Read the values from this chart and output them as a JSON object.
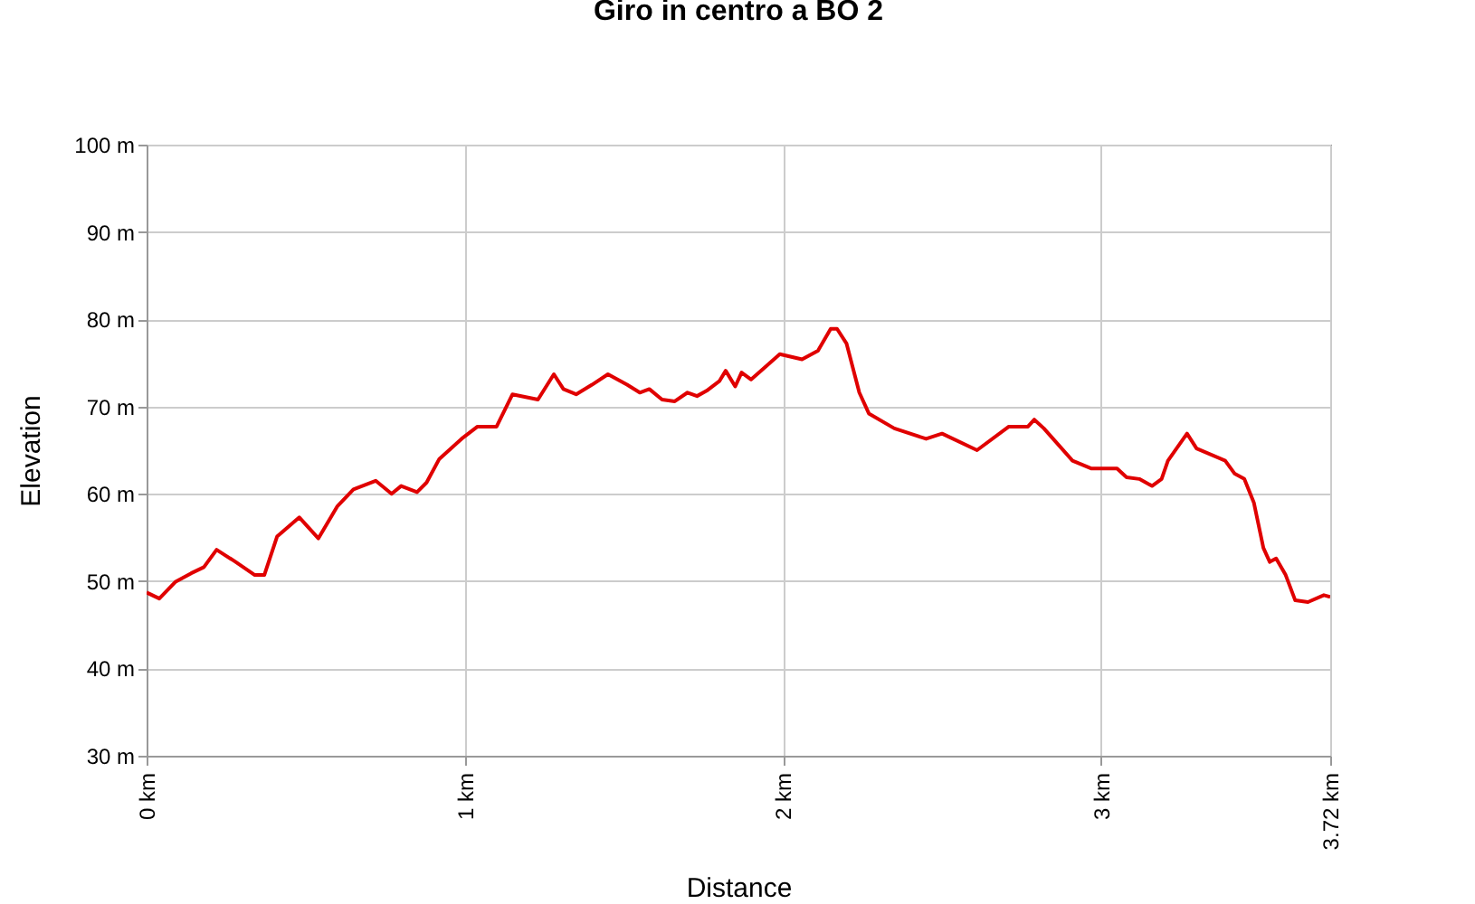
{
  "chart_data": {
    "type": "line",
    "title": "Giro in centro a BO 2",
    "xlabel": "Distance",
    "ylabel": "Elevation",
    "x": [
      0,
      0.04,
      0.09,
      0.14,
      0.18,
      0.22,
      0.28,
      0.34,
      0.37,
      0.41,
      0.48,
      0.54,
      0.6,
      0.65,
      0.72,
      0.77,
      0.8,
      0.85,
      0.88,
      0.92,
      0.99,
      1.04,
      1.1,
      1.15,
      1.23,
      1.28,
      1.31,
      1.35,
      1.4,
      1.45,
      1.51,
      1.55,
      1.58,
      1.62,
      1.66,
      1.7,
      1.73,
      1.76,
      1.8,
      1.82,
      1.85,
      1.87,
      1.9,
      1.95,
      1.99,
      2.06,
      2.11,
      2.15,
      2.17,
      2.2,
      2.24,
      2.27,
      2.35,
      2.45,
      2.5,
      2.61,
      2.71,
      2.77,
      2.79,
      2.82,
      2.91,
      2.97,
      3.05,
      3.08,
      3.12,
      3.16,
      3.19,
      3.21,
      3.27,
      3.3,
      3.39,
      3.42,
      3.45,
      3.48,
      3.51,
      3.53,
      3.55,
      3.58,
      3.61,
      3.65,
      3.7,
      3.72
    ],
    "series": [
      {
        "color": "#e00000",
        "values": [
          48.7,
          48,
          49.9,
          50.9,
          51.6,
          53.6,
          52.2,
          50.7,
          50.7,
          55.1,
          57.3,
          54.9,
          58.6,
          60.5,
          61.5,
          60,
          60.9,
          60.2,
          61.3,
          64,
          66.3,
          67.7,
          67.7,
          71.4,
          70.8,
          73.7,
          72,
          71.4,
          72.5,
          73.7,
          72.5,
          71.6,
          72,
          70.8,
          70.6,
          71.6,
          71.2,
          71.8,
          72.9,
          74.1,
          72.3,
          73.9,
          73.1,
          74.7,
          76,
          75.4,
          76.4,
          78.9,
          78.9,
          77.2,
          71.6,
          69.2,
          67.5,
          66.3,
          66.9,
          65,
          67.7,
          67.7,
          68.5,
          67.5,
          63.8,
          62.9,
          62.9,
          61.9,
          61.7,
          60.9,
          61.7,
          63.8,
          66.9,
          65.2,
          63.8,
          62.3,
          61.7,
          59,
          53.8,
          52.2,
          52.6,
          50.7,
          47.8,
          47.6,
          48.4,
          48.2
        ]
      }
    ],
    "xlim": [
      0,
      3.72
    ],
    "xticks": [
      {
        "value": 0,
        "label": "0 km"
      },
      {
        "value": 1,
        "label": "1 km"
      },
      {
        "value": 2,
        "label": "2 km"
      },
      {
        "value": 3,
        "label": "3 km"
      },
      {
        "value": 3.72,
        "label": "3.72 km"
      }
    ],
    "ylim": [
      30,
      100
    ],
    "yticks": [
      {
        "value": 30,
        "label": "30 m"
      },
      {
        "value": 40,
        "label": "40 m"
      },
      {
        "value": 50,
        "label": "50 m"
      },
      {
        "value": 60,
        "label": "60 m"
      },
      {
        "value": 70,
        "label": "70 m"
      },
      {
        "value": 80,
        "label": "80 m"
      },
      {
        "value": 90,
        "label": "90 m"
      },
      {
        "value": 100,
        "label": "100 m"
      }
    ],
    "grid": true,
    "line_style": "solid",
    "marker": "none"
  }
}
